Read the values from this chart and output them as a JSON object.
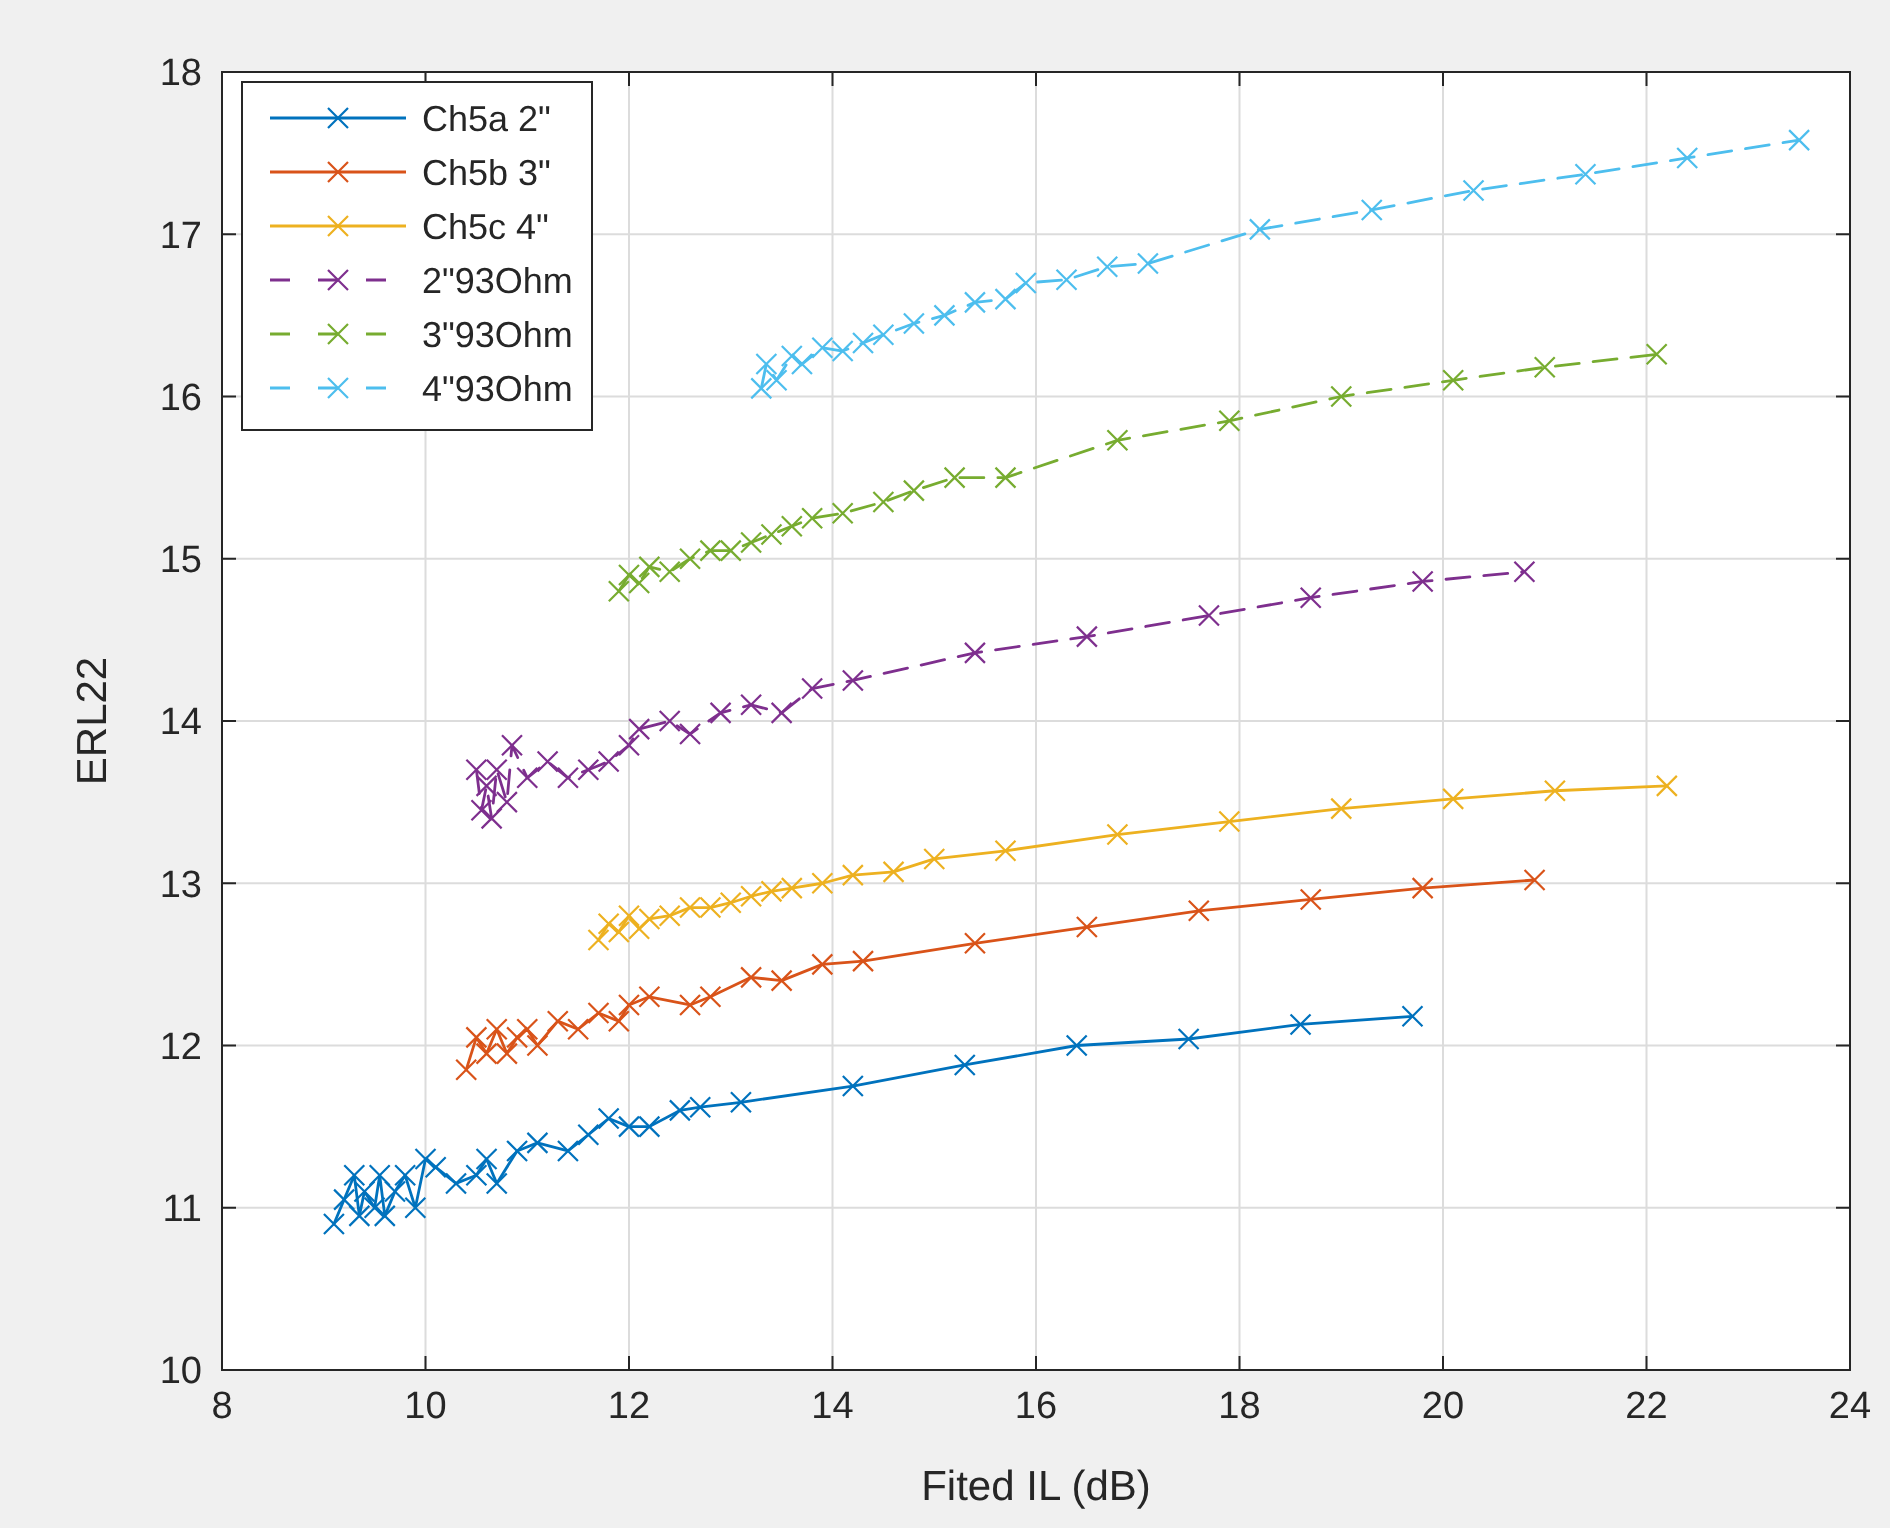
{
  "chart_data": {
    "type": "line",
    "xlabel": "Fited IL (dB)",
    "ylabel": "ERL22",
    "xlim": [
      8,
      24
    ],
    "xticks": [
      8,
      10,
      12,
      14,
      16,
      18,
      20,
      22,
      24
    ],
    "ylim": [
      10,
      18
    ],
    "yticks": [
      10,
      11,
      12,
      13,
      14,
      15,
      16,
      17,
      18
    ],
    "grid": true,
    "legend": "top left",
    "marker": "cross",
    "series": [
      {
        "name": "Ch5a 2\"",
        "color": "#0072bd",
        "line_style": "solid",
        "x": [
          9.1,
          9.2,
          9.3,
          9.35,
          9.4,
          9.5,
          9.55,
          9.6,
          9.7,
          9.8,
          9.9,
          10.0,
          10.1,
          10.3,
          10.5,
          10.6,
          10.7,
          10.9,
          11.1,
          11.4,
          11.6,
          11.8,
          12.0,
          12.2,
          12.5,
          12.7,
          13.1,
          14.2,
          15.3,
          16.4,
          17.5,
          18.6,
          19.7
        ],
        "values": [
          10.9,
          11.05,
          11.2,
          10.95,
          11.1,
          11.0,
          11.2,
          10.95,
          11.1,
          11.2,
          11.0,
          11.3,
          11.25,
          11.15,
          11.2,
          11.3,
          11.15,
          11.35,
          11.4,
          11.35,
          11.45,
          11.55,
          11.5,
          11.5,
          11.6,
          11.62,
          11.65,
          11.75,
          11.88,
          12.0,
          12.04,
          12.13,
          12.18
        ]
      },
      {
        "name": "Ch5b 3\"",
        "color": "#d95319",
        "line_style": "solid",
        "x": [
          10.4,
          10.5,
          10.6,
          10.7,
          10.8,
          10.9,
          11.0,
          11.1,
          11.3,
          11.5,
          11.7,
          11.9,
          12.0,
          12.2,
          12.6,
          12.8,
          13.2,
          13.5,
          13.9,
          14.3,
          15.4,
          16.5,
          17.6,
          18.7,
          19.8,
          20.9
        ],
        "values": [
          11.85,
          12.05,
          11.95,
          12.1,
          11.95,
          12.05,
          12.1,
          12.0,
          12.15,
          12.1,
          12.2,
          12.15,
          12.25,
          12.3,
          12.25,
          12.3,
          12.42,
          12.4,
          12.5,
          12.52,
          12.63,
          12.73,
          12.83,
          12.9,
          12.97,
          13.02
        ]
      },
      {
        "name": "Ch5c 4\"",
        "color": "#edb120",
        "line_style": "solid",
        "x": [
          11.7,
          11.8,
          11.9,
          12.0,
          12.1,
          12.2,
          12.4,
          12.6,
          12.8,
          13.0,
          13.2,
          13.4,
          13.6,
          13.9,
          14.2,
          14.6,
          15.0,
          15.7,
          16.8,
          17.9,
          19.0,
          20.1,
          21.1,
          22.2
        ],
        "values": [
          12.65,
          12.75,
          12.7,
          12.8,
          12.72,
          12.78,
          12.8,
          12.85,
          12.85,
          12.88,
          12.92,
          12.95,
          12.97,
          13.0,
          13.05,
          13.07,
          13.15,
          13.2,
          13.3,
          13.38,
          13.46,
          13.52,
          13.57,
          13.6
        ]
      },
      {
        "name": "2\"93Ohm",
        "color": "#7e2f8e",
        "line_style": "dashed",
        "x": [
          10.5,
          10.55,
          10.6,
          10.65,
          10.7,
          10.8,
          10.85,
          11.0,
          11.2,
          11.4,
          11.6,
          11.8,
          12.0,
          12.1,
          12.4,
          12.6,
          12.9,
          13.2,
          13.5,
          13.8,
          14.2,
          15.4,
          16.5,
          17.7,
          18.7,
          19.8,
          20.8
        ],
        "values": [
          13.7,
          13.45,
          13.6,
          13.4,
          13.7,
          13.5,
          13.85,
          13.65,
          13.75,
          13.65,
          13.7,
          13.75,
          13.85,
          13.95,
          14.0,
          13.92,
          14.05,
          14.1,
          14.05,
          14.2,
          14.25,
          14.42,
          14.52,
          14.65,
          14.76,
          14.86,
          14.92
        ]
      },
      {
        "name": "3\"93Ohm",
        "color": "#77ac30",
        "line_style": "dashed",
        "x": [
          11.9,
          12.0,
          12.1,
          12.2,
          12.4,
          12.6,
          12.8,
          13.0,
          13.2,
          13.4,
          13.6,
          13.8,
          14.1,
          14.5,
          14.8,
          15.2,
          15.7,
          16.8,
          17.9,
          19.0,
          20.1,
          21.0,
          22.1
        ],
        "values": [
          14.8,
          14.9,
          14.85,
          14.95,
          14.92,
          15.0,
          15.05,
          15.05,
          15.1,
          15.15,
          15.2,
          15.25,
          15.28,
          15.35,
          15.42,
          15.5,
          15.5,
          15.73,
          15.85,
          16.0,
          16.1,
          16.18,
          16.26
        ]
      },
      {
        "name": "4\"93Ohm",
        "color": "#4dbeee",
        "line_style": "dashed",
        "x": [
          13.3,
          13.35,
          13.45,
          13.6,
          13.7,
          13.9,
          14.1,
          14.3,
          14.5,
          14.8,
          15.1,
          15.4,
          15.7,
          15.9,
          16.3,
          16.7,
          17.1,
          18.2,
          19.3,
          20.3,
          21.4,
          22.4,
          23.5
        ],
        "values": [
          16.05,
          16.2,
          16.1,
          16.25,
          16.2,
          16.3,
          16.28,
          16.33,
          16.38,
          16.45,
          16.5,
          16.58,
          16.6,
          16.7,
          16.72,
          16.8,
          16.82,
          17.03,
          17.15,
          17.27,
          17.37,
          17.47,
          17.58
        ]
      }
    ]
  }
}
